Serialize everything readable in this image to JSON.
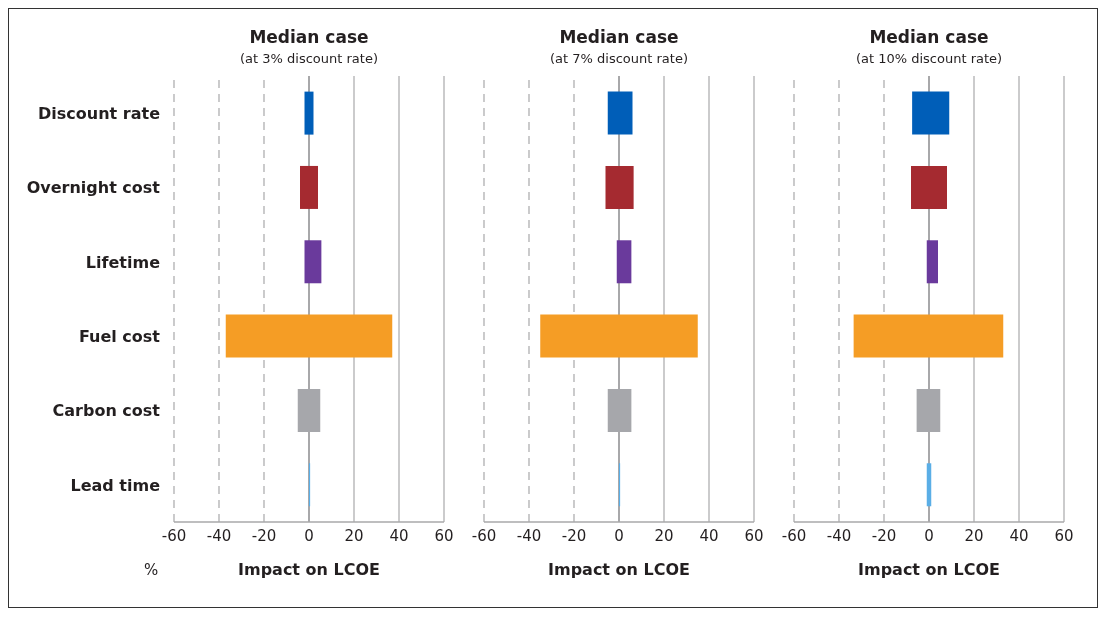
{
  "chart_data": [
    {
      "type": "bar",
      "orientation": "horizontal",
      "title": "Median case",
      "subtitle": "(at 3% discount rate)",
      "xlabel": "Impact on LCOE",
      "annotations": [
        "%"
      ],
      "categories": [
        "Discount rate",
        "Overnight cost",
        "Lifetime",
        "Fuel cost",
        "Carbon cost",
        "Lead time"
      ],
      "base": [
        -2,
        -4,
        -2,
        -37,
        -5,
        0
      ],
      "values": [
        4,
        8,
        7.5,
        74,
        10,
        0.5
      ],
      "colors": [
        "#005eb8",
        "#a52a30",
        "#6a3a9c",
        "#f59d25",
        "#a6a7ab",
        "#5aaee6"
      ],
      "xlim": [
        -60,
        60
      ],
      "xticks": [
        -60,
        -40,
        -20,
        0,
        20,
        40,
        60
      ],
      "grid": "x"
    },
    {
      "type": "bar",
      "orientation": "horizontal",
      "title": "Median case",
      "subtitle": "(at 7% discount rate)",
      "xlabel": "Impact on LCOE",
      "tick_labels": "x",
      "categories": [
        null,
        null,
        null,
        null,
        null,
        null
      ],
      "base": [
        -5,
        -6,
        -1,
        -35,
        -5,
        0
      ],
      "values": [
        11,
        12.5,
        6.5,
        70,
        10.5,
        0.5
      ],
      "colors": [
        "#005eb8",
        "#a52a30",
        "#6a3a9c",
        "#f59d25",
        "#a6a7ab",
        "#5aaee6"
      ],
      "xlim": [
        -60,
        60
      ],
      "xticks": [
        -60,
        -40,
        -20,
        0,
        20,
        40,
        60
      ],
      "grid": "x"
    },
    {
      "type": "bar",
      "orientation": "horizontal",
      "title": "Median case",
      "subtitle": "(at 10% discount rate)",
      "xlabel": "Impact on LCOE",
      "tick_labels": "x",
      "categories": [
        null,
        null,
        null,
        null,
        null,
        null
      ],
      "base": [
        -7.5,
        -8,
        -1,
        -33.5,
        -5.5,
        -1
      ],
      "values": [
        16.5,
        16,
        5,
        66.5,
        10.5,
        2
      ],
      "colors": [
        "#005eb8",
        "#a52a30",
        "#6a3a9c",
        "#f59d25",
        "#a6a7ab",
        "#5aaee6"
      ],
      "xlim": [
        -60,
        60
      ],
      "xticks": [
        -60,
        -40,
        -20,
        0,
        20,
        40,
        60
      ],
      "grid": "x"
    }
  ]
}
